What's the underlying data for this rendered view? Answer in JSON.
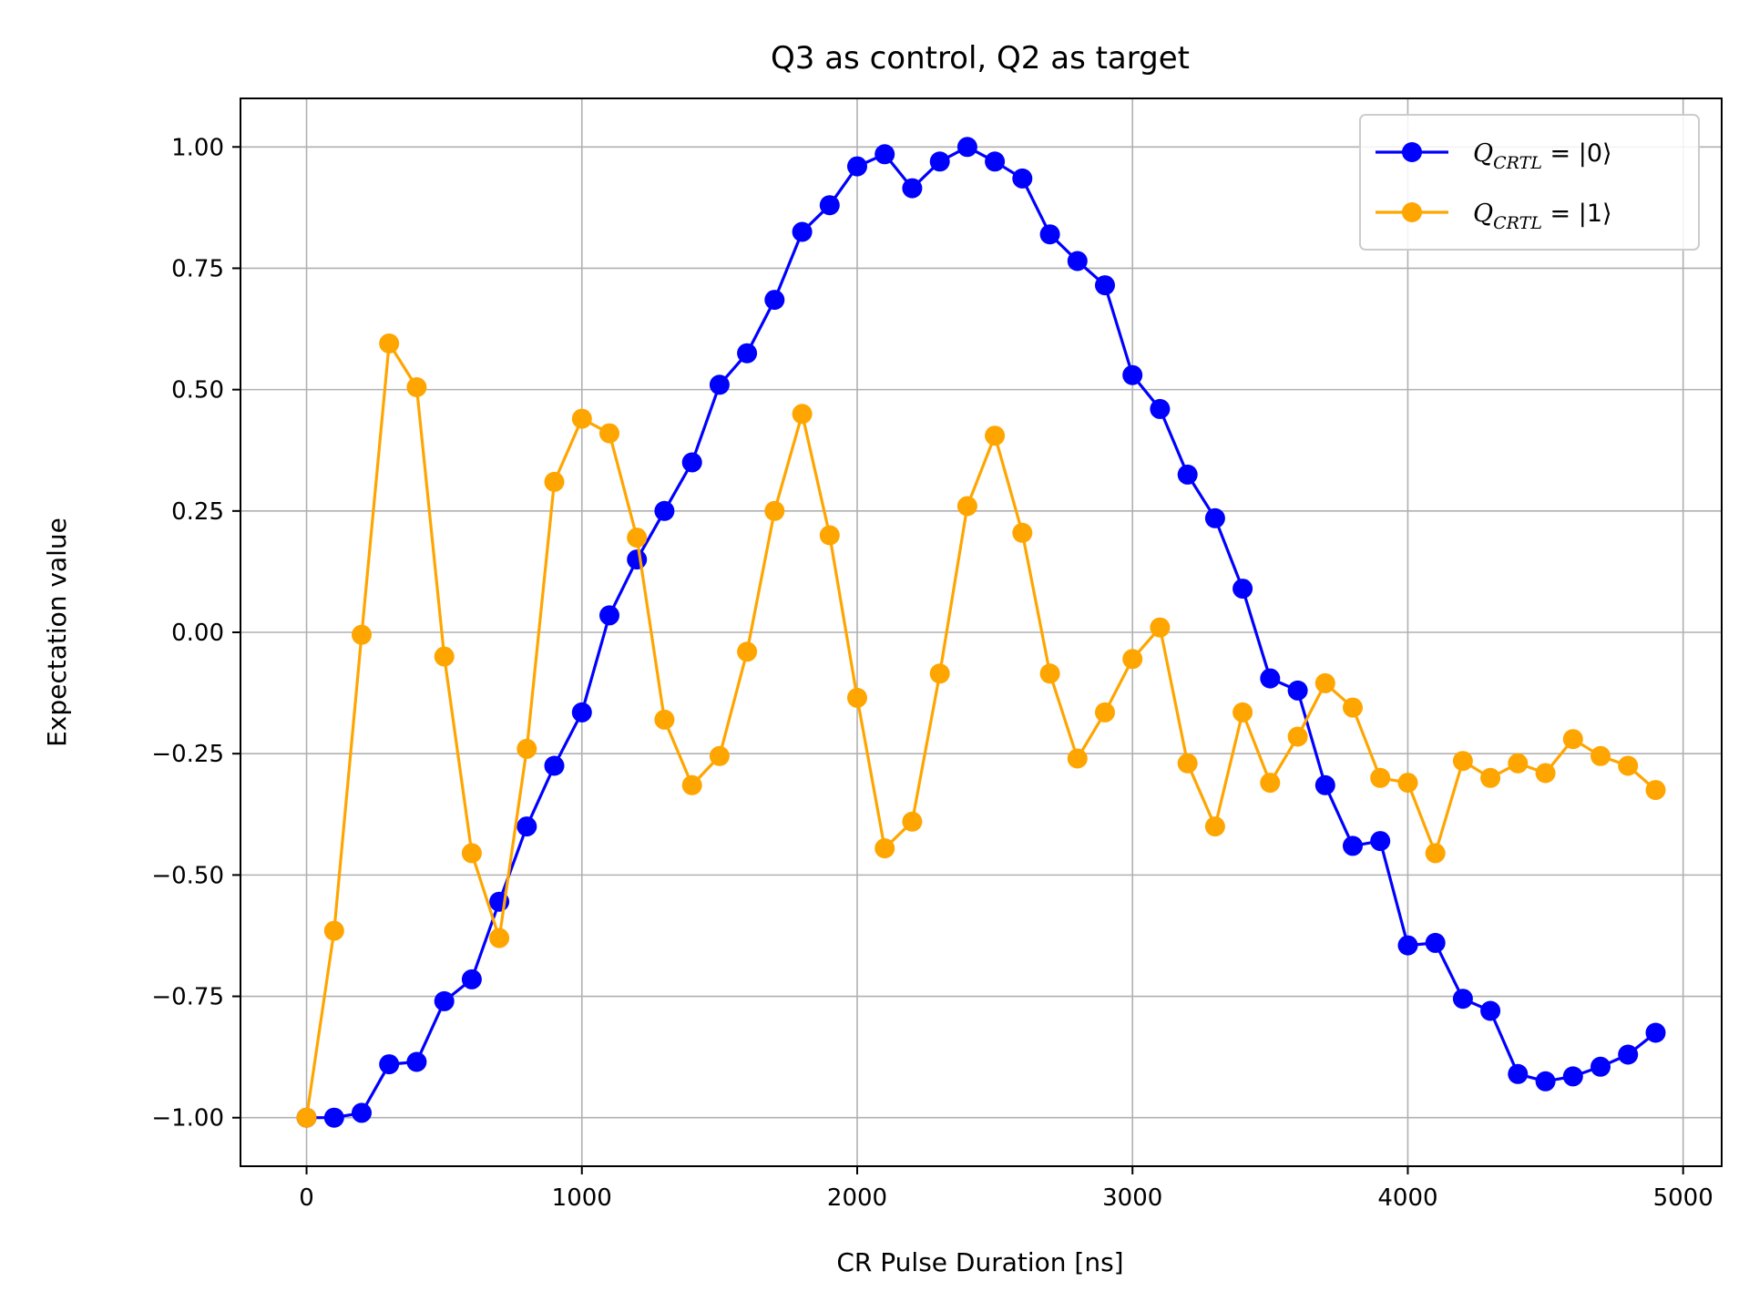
{
  "chart_data": {
    "type": "line",
    "title": "Q3 as control, Q2 as target",
    "xlabel": "CR Pulse Duration [ns]",
    "ylabel": "Expectation value",
    "xlim": [
      -240,
      5140
    ],
    "ylim": [
      -1.1,
      1.1
    ],
    "xticks": [
      0,
      1000,
      2000,
      3000,
      4000,
      5000
    ],
    "xtick_labels": [
      "0",
      "1000",
      "2000",
      "3000",
      "4000",
      "5000"
    ],
    "yticks": [
      1.0,
      0.75,
      0.5,
      0.25,
      0.0,
      -0.25,
      -0.5,
      -0.75,
      -1.0
    ],
    "ytick_labels": [
      "1.00",
      "0.75",
      "0.50",
      "0.25",
      "0.00",
      "−0.25",
      "−0.50",
      "−0.75",
      "−1.00"
    ],
    "grid": true,
    "legend_position": "top-right",
    "x": [
      0,
      100,
      200,
      300,
      400,
      500,
      600,
      700,
      800,
      900,
      1000,
      1100,
      1200,
      1300,
      1400,
      1500,
      1600,
      1700,
      1800,
      1900,
      2000,
      2100,
      2200,
      2300,
      2400,
      2500,
      2600,
      2700,
      2800,
      2900,
      3000,
      3100,
      3200,
      3300,
      3400,
      3500,
      3600,
      3700,
      3800,
      3900,
      4000,
      4100,
      4200,
      4300,
      4400,
      4500,
      4600,
      4700,
      4800,
      4900
    ],
    "series": [
      {
        "name": "Q_CRTL = |0⟩",
        "legend_label": {
          "symbol": "Q",
          "subscript": "CRTL",
          "rest": " = |0⟩"
        },
        "color": "#0000ff",
        "values": [
          -1.0,
          -1.0,
          -0.99,
          -0.89,
          -0.885,
          -0.76,
          -0.715,
          -0.555,
          -0.4,
          -0.275,
          -0.165,
          0.035,
          0.15,
          0.25,
          0.35,
          0.51,
          0.575,
          0.685,
          0.825,
          0.88,
          0.96,
          0.985,
          0.915,
          0.97,
          1.0,
          0.97,
          0.935,
          0.82,
          0.765,
          0.715,
          0.53,
          0.46,
          0.325,
          0.235,
          0.09,
          -0.095,
          -0.12,
          -0.315,
          -0.44,
          -0.43,
          -0.645,
          -0.64,
          -0.755,
          -0.78,
          -0.91,
          -0.925,
          -0.915,
          -0.895,
          -0.87,
          -0.825
        ]
      },
      {
        "name": "Q_CRTL = |1⟩",
        "legend_label": {
          "symbol": "Q",
          "subscript": "CRTL",
          "rest": " = |1⟩"
        },
        "color": "#ffa500",
        "values": [
          -1.0,
          -0.615,
          -0.005,
          0.595,
          0.505,
          -0.05,
          -0.455,
          -0.63,
          -0.24,
          0.31,
          0.44,
          0.41,
          0.195,
          -0.18,
          -0.315,
          -0.255,
          -0.04,
          0.25,
          0.45,
          0.2,
          -0.135,
          -0.445,
          -0.39,
          -0.085,
          0.26,
          0.405,
          0.205,
          -0.085,
          -0.26,
          -0.165,
          -0.055,
          0.01,
          -0.27,
          -0.4,
          -0.165,
          -0.31,
          -0.215,
          -0.105,
          -0.155,
          -0.3,
          -0.31,
          -0.455,
          -0.265,
          -0.3,
          -0.27,
          -0.29,
          -0.22,
          -0.255,
          -0.275,
          -0.325
        ]
      }
    ]
  }
}
